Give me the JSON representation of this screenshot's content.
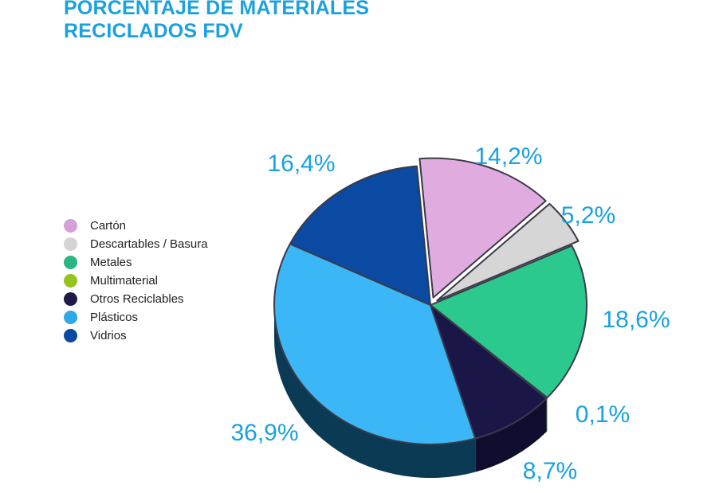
{
  "title": {
    "line1": "PORCENTAJE DE MATERIALES",
    "line2": "RECICLADOS FDV"
  },
  "chart_data": {
    "type": "pie",
    "title": "PORCENTAJE DE MATERIALES RECICLADOS FDV",
    "legend_position": "left",
    "slices": [
      {
        "label": "Cartón",
        "value": 14.2,
        "display": "14,2%",
        "color": "#e0acdf",
        "side": "#8a5e89"
      },
      {
        "label": "Descartables / Basura",
        "value": 5.2,
        "display": "5,2%",
        "color": "#d6d6d6",
        "side": "#7e7e7e"
      },
      {
        "label": "Metales",
        "value": 18.6,
        "display": "18,6%",
        "color": "#2cc98e",
        "side": "#157552"
      },
      {
        "label": "Multimaterial",
        "value": 0.1,
        "display": "0,1%",
        "color": "#97c21f",
        "side": "#56731a"
      },
      {
        "label": "Otros Reciclables",
        "value": 8.7,
        "display": "8,7%",
        "color": "#1b1648",
        "side": "#100d2e"
      },
      {
        "label": "Plásticos",
        "value": 36.9,
        "display": "36,9%",
        "color": "#3bb6f7",
        "side": "#0b3a55"
      },
      {
        "label": "Vidrios",
        "value": 16.4,
        "display": "16,4%",
        "color": "#0a4aa3",
        "side": "#072f66"
      }
    ],
    "legend_colors": [
      "#d4a0d6",
      "#d4d4d4",
      "#2bb582",
      "#95c41c",
      "#1f1a4a",
      "#2fa8e6",
      "#0b4aa0"
    ]
  }
}
